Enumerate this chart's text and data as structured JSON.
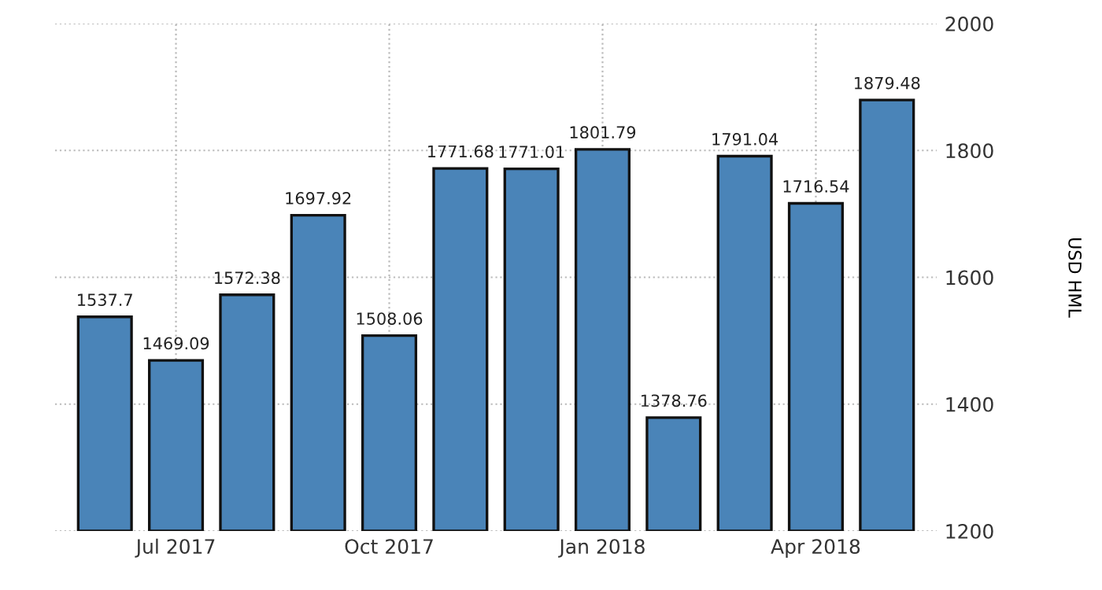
{
  "chart_data": {
    "type": "bar",
    "categories": [
      null,
      "Jul 2017",
      null,
      null,
      "Oct 2017",
      null,
      null,
      "Jan 2018",
      null,
      null,
      "Apr 2018",
      null
    ],
    "values": [
      1537.7,
      1469.09,
      1572.38,
      1697.92,
      1508.06,
      1771.68,
      1771.01,
      1801.79,
      1378.76,
      1791.04,
      1716.54,
      1879.48
    ],
    "color": "#4a84b8",
    "ylabel": "USD HML",
    "ylim": [
      1200,
      2000
    ],
    "yticks": [
      1200,
      1400,
      1600,
      1800,
      2000
    ],
    "grid": true,
    "data_labels": true
  }
}
